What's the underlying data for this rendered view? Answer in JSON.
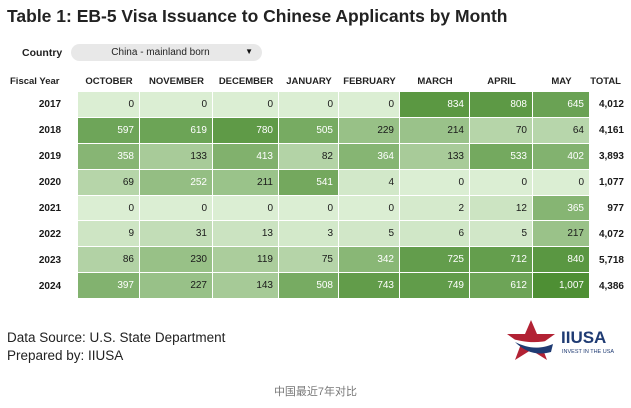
{
  "title": "Table 1: EB-5 Visa Issuance to Chinese Applicants by Month",
  "filter": {
    "label": "Country",
    "value": "China - mainland born"
  },
  "chart_data": {
    "type": "table",
    "headers": [
      "Fiscal Year",
      "OCTOBER",
      "NOVEMBER",
      "DECEMBER",
      "JANUARY",
      "FEBRUARY",
      "MARCH",
      "APRIL",
      "MAY",
      "TOTAL"
    ],
    "rows": [
      {
        "year": "2017",
        "values": [
          0,
          0,
          0,
          0,
          0,
          834,
          808,
          645
        ],
        "labels": [
          "0",
          "0",
          "0",
          "0",
          "0",
          "834",
          "808",
          "645"
        ],
        "total": "4,012"
      },
      {
        "year": "2018",
        "values": [
          597,
          619,
          780,
          505,
          229,
          214,
          70,
          64
        ],
        "labels": [
          "597",
          "619",
          "780",
          "505",
          "229",
          "214",
          "70",
          "64"
        ],
        "total": "4,161"
      },
      {
        "year": "2019",
        "values": [
          358,
          133,
          413,
          82,
          364,
          133,
          533,
          402
        ],
        "labels": [
          "358",
          "133",
          "413",
          "82",
          "364",
          "133",
          "533",
          "402"
        ],
        "total": "3,893"
      },
      {
        "year": "2020",
        "values": [
          69,
          252,
          211,
          541,
          4,
          0,
          0,
          0
        ],
        "labels": [
          "69",
          "252",
          "211",
          "541",
          "4",
          "0",
          "0",
          "0"
        ],
        "total": "1,077"
      },
      {
        "year": "2021",
        "values": [
          0,
          0,
          0,
          0,
          0,
          2,
          12,
          365
        ],
        "labels": [
          "0",
          "0",
          "0",
          "0",
          "0",
          "2",
          "12",
          "365"
        ],
        "total": "977"
      },
      {
        "year": "2022",
        "values": [
          9,
          31,
          13,
          3,
          5,
          6,
          5,
          217
        ],
        "labels": [
          "9",
          "31",
          "13",
          "3",
          "5",
          "6",
          "5",
          "217"
        ],
        "total": "4,072"
      },
      {
        "year": "2023",
        "values": [
          86,
          230,
          119,
          75,
          342,
          725,
          712,
          840
        ],
        "labels": [
          "86",
          "230",
          "119",
          "75",
          "342",
          "725",
          "712",
          "840"
        ],
        "total": "5,718"
      },
      {
        "year": "2024",
        "values": [
          397,
          227,
          143,
          508,
          743,
          749,
          612,
          1007
        ],
        "labels": [
          "397",
          "227",
          "143",
          "508",
          "743",
          "749",
          "612",
          "1,007"
        ],
        "total": "4,386"
      }
    ],
    "colors": {
      "low": "#dbeed3",
      "high": "#4e8f34",
      "light_text": "#ffffff",
      "dark_text": "#1a1a1a"
    }
  },
  "footer": {
    "source": "Data Source: U.S. State Department",
    "prepared": "Prepared by: IIUSA",
    "logo_text": "IIUSA",
    "logo_tagline": "INVEST IN THE USA"
  },
  "caption": "中国最近7年对比"
}
